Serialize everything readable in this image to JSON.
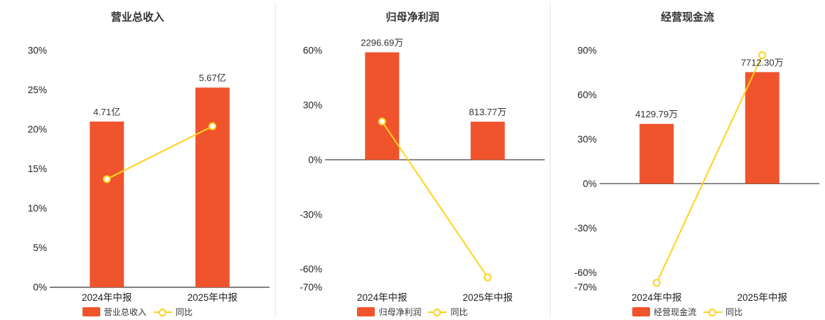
{
  "colors": {
    "bar": "#f0542c",
    "line": "#ffd21e",
    "axis_line": "#595959",
    "text": "#333333",
    "divider": "#e4e4e4",
    "background": "#ffffff"
  },
  "chart_data": [
    {
      "type": "bar+line",
      "title": "营业总收入",
      "categories": [
        "2024年中报",
        "2025年中报"
      ],
      "bar_series": {
        "name": "营业总收入",
        "labels": [
          "4.71亿",
          "5.67亿"
        ],
        "amounts": [
          4.71,
          5.67
        ],
        "unit": "亿",
        "heights_pct": [
          21.0,
          25.3
        ]
      },
      "line_series": {
        "name": "同比",
        "values_pct": [
          13.7,
          20.4
        ]
      },
      "y_axis": {
        "ticks": [
          "30%",
          "25%",
          "20%",
          "15%",
          "10%",
          "5%",
          "0%"
        ],
        "min": 0,
        "max": 30
      },
      "grid": false,
      "legend_position": "bottom"
    },
    {
      "type": "bar+line",
      "title": "归母净利润",
      "categories": [
        "2024年中报",
        "2025年中报"
      ],
      "bar_series": {
        "name": "归母净利润",
        "labels": [
          "2296.69万",
          "813.77万"
        ],
        "amounts": [
          2296.69,
          813.77
        ],
        "unit": "万",
        "heights_pct": [
          59.0,
          20.9
        ]
      },
      "line_series": {
        "name": "同比",
        "values_pct": [
          21.0,
          -64.6
        ]
      },
      "y_axis": {
        "ticks": [
          "60%",
          "30%",
          "0%",
          "-30%",
          "-60%",
          "-70%"
        ],
        "min": -70,
        "max": 60
      },
      "grid": false,
      "legend_position": "bottom"
    },
    {
      "type": "bar+line",
      "title": "经营现金流",
      "categories": [
        "2024年中报",
        "2025年中报"
      ],
      "bar_series": {
        "name": "经营现金流",
        "labels": [
          "4129.79万",
          "7712.30万"
        ],
        "amounts": [
          4129.79,
          7712.3
        ],
        "unit": "万",
        "heights_pct": [
          40.4,
          75.4
        ]
      },
      "line_series": {
        "name": "同比",
        "values_pct": [
          -67.0,
          86.8
        ]
      },
      "y_axis": {
        "ticks": [
          "90%",
          "60%",
          "30%",
          "0%",
          "-30%",
          "-60%",
          "-70%"
        ],
        "min": -70,
        "max": 90
      },
      "grid": false,
      "legend_position": "bottom"
    }
  ]
}
